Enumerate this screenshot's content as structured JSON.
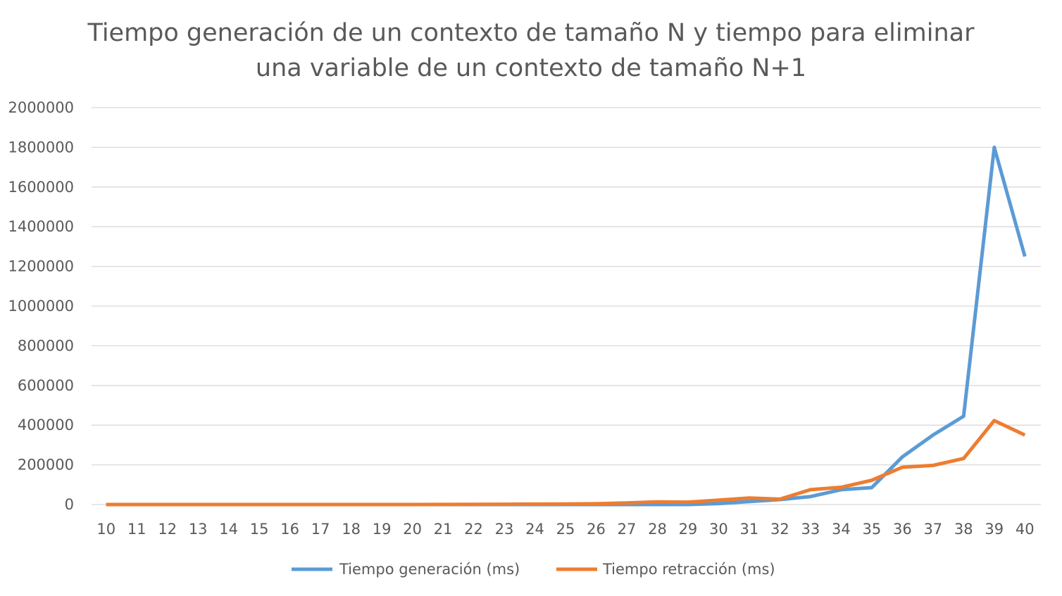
{
  "chart_data": {
    "type": "line",
    "title_lines": [
      "Tiempo generación de un contexto de tamaño N y tiempo para eliminar",
      "una variable de un contexto de tamaño N+1"
    ],
    "xlabel": "",
    "ylabel": "",
    "ylim": [
      0,
      2000000
    ],
    "yticks": [
      "0",
      "200000",
      "400000",
      "600000",
      "800000",
      "1000000",
      "1200000",
      "1400000",
      "1600000",
      "1800000",
      "2000000"
    ],
    "categories": [
      "10",
      "11",
      "12",
      "13",
      "14",
      "15",
      "16",
      "17",
      "18",
      "19",
      "20",
      "21",
      "22",
      "23",
      "24",
      "25",
      "26",
      "27",
      "28",
      "29",
      "30",
      "31",
      "32",
      "33",
      "34",
      "35",
      "36",
      "37",
      "38",
      "39",
      "40"
    ],
    "grid": true,
    "legend_position": "bottom",
    "series": [
      {
        "name": "Tiempo generación (ms)",
        "color": "#5b9bd5",
        "values": [
          0,
          0,
          0,
          0,
          0,
          0,
          0,
          0,
          0,
          0,
          0,
          0,
          0,
          0,
          0,
          0,
          0,
          0,
          0,
          0,
          5000,
          15000,
          25000,
          40000,
          75000,
          85000,
          240000,
          350000,
          445000,
          1800000,
          1250000
        ]
      },
      {
        "name": "Tiempo retracción (ms)",
        "color": "#ed7d31",
        "values": [
          0,
          0,
          0,
          0,
          0,
          0,
          0,
          0,
          0,
          0,
          0,
          500,
          1000,
          1500,
          2000,
          3000,
          4000,
          8000,
          13000,
          12000,
          22000,
          33000,
          27000,
          75000,
          87000,
          122000,
          188000,
          197000,
          232000,
          423000,
          350000
        ]
      }
    ]
  }
}
